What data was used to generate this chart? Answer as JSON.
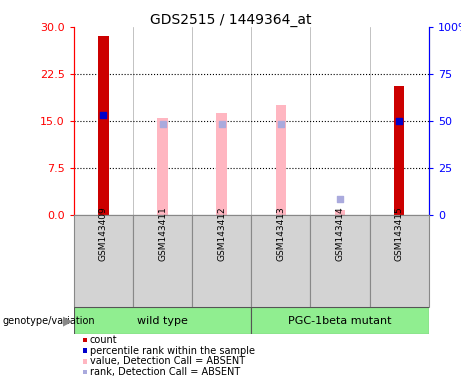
{
  "title": "GDS2515 / 1449364_at",
  "samples": [
    "GSM143409",
    "GSM143411",
    "GSM143412",
    "GSM143413",
    "GSM143414",
    "GSM143415"
  ],
  "left_ylim": [
    0,
    30
  ],
  "left_yticks": [
    0,
    7.5,
    15,
    22.5,
    30
  ],
  "right_ylim": [
    0,
    100
  ],
  "right_yticks": [
    0,
    25,
    50,
    75,
    100
  ],
  "red_bar_values": [
    28.5,
    0,
    0,
    0,
    0,
    20.5
  ],
  "red_bar_color": "#cc0000",
  "red_bar_width": 0.18,
  "blue_sq_values_right": [
    53,
    0,
    0,
    0,
    0,
    50
  ],
  "blue_sq_color": "#0000cc",
  "blue_sq_size": 18,
  "pink_bar_values": [
    0,
    15.5,
    16.2,
    17.5,
    0.8,
    0
  ],
  "pink_bar_color": "#ffb6c1",
  "pink_bar_width": 0.18,
  "lb_sq_values": [
    0,
    14.5,
    14.5,
    14.5,
    2.5,
    0
  ],
  "lb_sq_color": "#aaaadd",
  "lb_sq_size": 14,
  "group_color": "#90ee90",
  "legend_items": [
    {
      "label": "count",
      "color": "#cc0000"
    },
    {
      "label": "percentile rank within the sample",
      "color": "#0000cc"
    },
    {
      "label": "value, Detection Call = ABSENT",
      "color": "#ffb6c1"
    },
    {
      "label": "rank, Detection Call = ABSENT",
      "color": "#aaaadd"
    }
  ]
}
